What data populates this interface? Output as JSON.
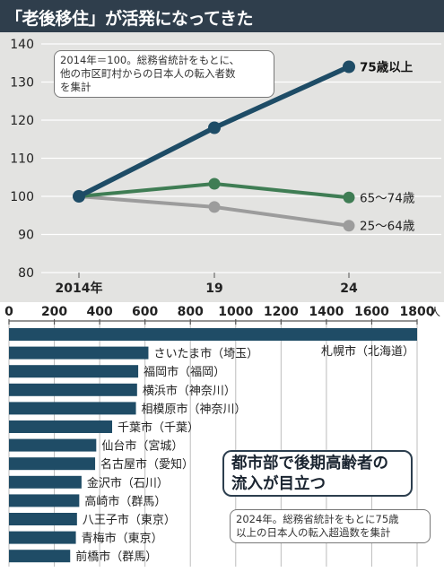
{
  "title": "「老後移住」が活発になってきた",
  "line_note": [
    "2014年＝100。総務省統計をもとに、",
    "他の市区町村からの日本人の転入者数",
    "を集計"
  ],
  "bar_note": [
    "2024年。総務省統計をもとに75歳",
    "以上の日本人の転入超過数を集計"
  ],
  "callout": [
    "都市部で後期高齢者の",
    "流入が目立つ"
  ],
  "colors": {
    "title_bg": "#2f3e4c",
    "panel_bg": "#e3e3e1",
    "series_75plus": "#1e4c66",
    "series_65_74": "#3f7d54",
    "series_25_64": "#9c9c9c",
    "bar": "#1f4c66"
  },
  "chart_data": [
    {
      "type": "line",
      "x": [
        "2014年",
        "19",
        "24"
      ],
      "ylim": [
        80,
        140
      ],
      "yticks": [
        80,
        90,
        100,
        110,
        120,
        130,
        140
      ],
      "grid": true,
      "series": [
        {
          "name": "75歳以上",
          "values": [
            100,
            118,
            134
          ],
          "color": "#1e4c66"
        },
        {
          "name": "65〜74歳",
          "values": [
            100,
            103.3,
            99.7
          ],
          "color": "#3f7d54"
        },
        {
          "name": "25〜64歳",
          "values": [
            100,
            97.2,
            92.3
          ],
          "color": "#9c9c9c"
        }
      ]
    },
    {
      "type": "bar",
      "orientation": "horizontal",
      "xlim": [
        0,
        1800
      ],
      "xticks": [
        0,
        200,
        400,
        600,
        800,
        1000,
        1200,
        1400,
        1600,
        1800
      ],
      "x_unit": "人",
      "categories": [
        "札幌市（北海道）",
        "さいたま市（埼玉）",
        "福岡市（福岡）",
        "横浜市（神奈川）",
        "相模原市（神奈川）",
        "千葉市（千葉）",
        "仙台市（宮城）",
        "名古屋市（愛知）",
        "金沢市（石川）",
        "高崎市（群馬）",
        "八王子市（東京）",
        "青梅市（東京）",
        "前橋市（群馬）"
      ],
      "values": [
        1800,
        615,
        570,
        565,
        560,
        455,
        385,
        380,
        320,
        310,
        300,
        295,
        270
      ]
    }
  ]
}
